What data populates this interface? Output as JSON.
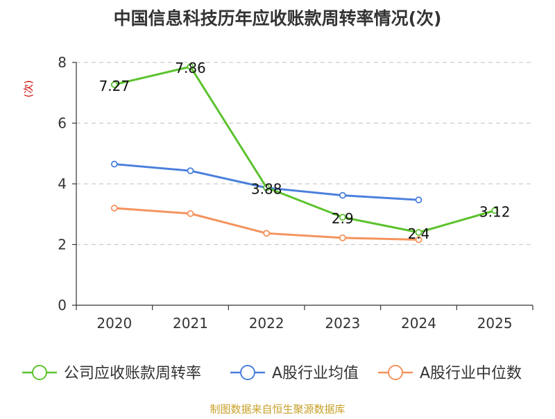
{
  "chart_data": {
    "type": "line",
    "title": "中国信息科技历年应收账款周转率情况(次)",
    "ylabel": "(次)",
    "xlabel": "",
    "ylim": [
      0,
      8
    ],
    "yticks": [
      0,
      2,
      4,
      6,
      8
    ],
    "categories": [
      "2020",
      "2021",
      "2022",
      "2023",
      "2024",
      "2025"
    ],
    "grid": true,
    "legend_position": "bottom",
    "series": [
      {
        "name": "公司应收账款周转率",
        "color": "#5cc22e",
        "values": [
          7.27,
          7.86,
          3.88,
          2.9,
          2.4,
          3.12
        ],
        "labels": [
          "7.27",
          "7.86",
          "3.88",
          "2.9",
          "2.4",
          "3.12"
        ]
      },
      {
        "name": "A股行业均值",
        "color": "#4a7fdc",
        "values": [
          4.65,
          4.43,
          3.87,
          3.62,
          3.47,
          null
        ]
      },
      {
        "name": "A股行业中位数",
        "color": "#f5935c",
        "values": [
          3.2,
          3.02,
          2.37,
          2.22,
          2.16,
          null
        ]
      }
    ],
    "source": "制图数据来自恒生聚源数据库"
  }
}
